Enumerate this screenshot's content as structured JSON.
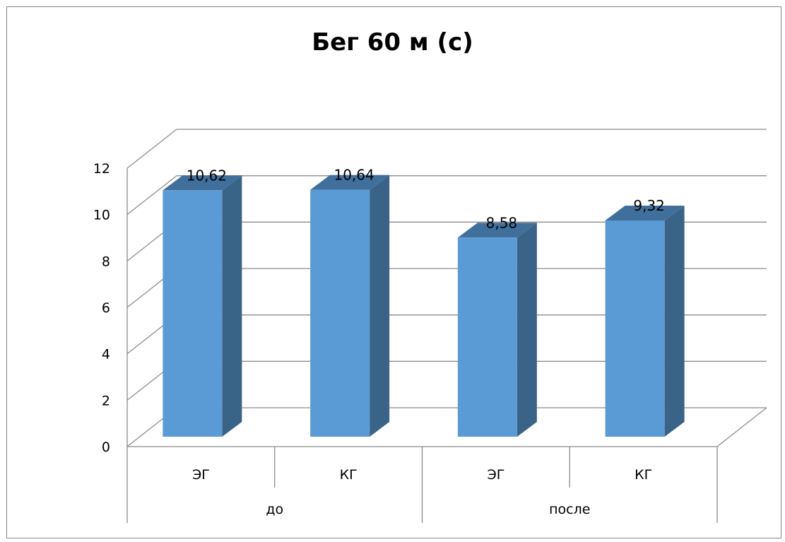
{
  "chart_data": {
    "type": "bar",
    "title": "Бег 60 м (с)",
    "groups": [
      {
        "label": "до",
        "categories": [
          "ЭГ",
          "КГ"
        ]
      },
      {
        "label": "после",
        "categories": [
          "ЭГ",
          "КГ"
        ]
      }
    ],
    "categories": [
      "ЭГ",
      "КГ",
      "ЭГ",
      "КГ"
    ],
    "values": [
      10.62,
      10.64,
      8.58,
      9.32
    ],
    "data_labels": [
      "10,62",
      "10,64",
      "8,58",
      "9,32"
    ],
    "y_ticks": [
      "0",
      "2",
      "4",
      "6",
      "8",
      "10",
      "12"
    ],
    "ylim": [
      0,
      12
    ],
    "grid": true,
    "style_3d": true,
    "legend": "none",
    "colors": {
      "bar_front": "#5B9BD5",
      "bar_side": "#3A6487",
      "bar_top": "#416F9C",
      "grid": "#8C8C8C",
      "border": "#868686"
    }
  }
}
